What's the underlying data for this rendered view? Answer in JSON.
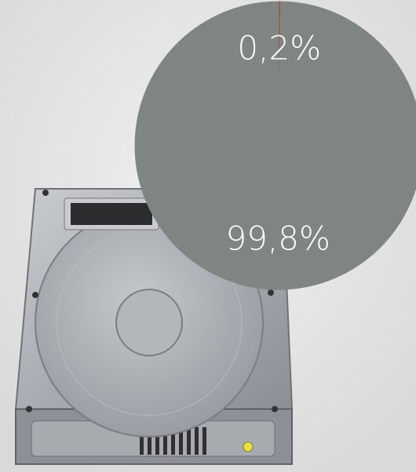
{
  "chart_data": {
    "type": "pie",
    "values": [
      0.2,
      99.8
    ],
    "value_labels": [
      "0,2%",
      "99,8%"
    ],
    "colors": [
      "#b8392e",
      "#7f8582"
    ]
  }
}
